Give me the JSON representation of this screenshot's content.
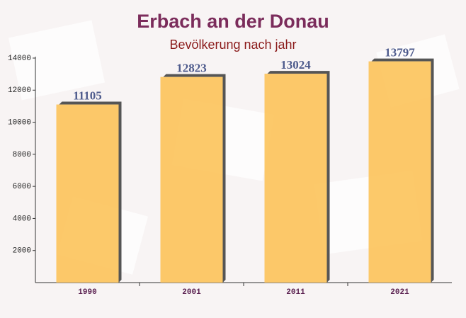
{
  "chart_data": {
    "type": "bar",
    "title": "Erbach an der Donau",
    "subtitle": "Bevölkerung nach jahr",
    "categories": [
      "1990",
      "2001",
      "2011",
      "2021"
    ],
    "values": [
      11105,
      12823,
      13024,
      13797
    ],
    "color": "#fcc35a",
    "ylim": [
      0,
      14000
    ],
    "yticks": [
      2000,
      4000,
      6000,
      8000,
      10000,
      12000,
      14000
    ],
    "grid": false
  }
}
